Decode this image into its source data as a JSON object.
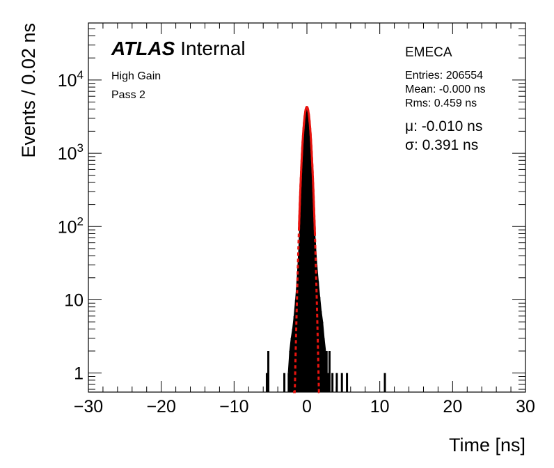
{
  "chart_data": {
    "type": "histogram",
    "title": "",
    "xlabel": "Time [ns]",
    "ylabel": "Events / 0.02 ns",
    "xlim": [
      -30,
      30
    ],
    "ylim": [
      0.55,
      60000
    ],
    "y_scale": "log",
    "x_ticks": [
      "−30",
      "−20",
      "−10",
      "0",
      "10",
      "20",
      "30"
    ],
    "x_tick_values": [
      -30,
      -20,
      -10,
      0,
      10,
      20,
      30
    ],
    "y_ticks": [
      {
        "value": 1,
        "label": "1",
        "sup": ""
      },
      {
        "value": 10,
        "label": "10",
        "sup": ""
      },
      {
        "value": 100,
        "label": "10",
        "sup": "2"
      },
      {
        "value": 1000,
        "label": "10",
        "sup": "3"
      },
      {
        "value": 10000,
        "label": "10",
        "sup": "4"
      }
    ],
    "grid": false,
    "histogram": {
      "name": "",
      "color": "#000000",
      "points": [
        [
          -5.5,
          1
        ],
        [
          -5.3,
          2
        ],
        [
          -3.1,
          1
        ],
        [
          -2.5,
          1
        ],
        [
          -2.3,
          2
        ],
        [
          -2.1,
          3
        ],
        [
          -1.9,
          4
        ],
        [
          -1.7,
          6
        ],
        [
          -1.5,
          10
        ],
        [
          -1.3,
          18
        ],
        [
          -1.1,
          40
        ],
        [
          -0.9,
          110
        ],
        [
          -0.7,
          300
        ],
        [
          -0.5,
          850
        ],
        [
          -0.3,
          2000
        ],
        [
          -0.1,
          3700
        ],
        [
          0.0,
          4300
        ],
        [
          0.1,
          3800
        ],
        [
          0.3,
          2300
        ],
        [
          0.5,
          1050
        ],
        [
          0.7,
          380
        ],
        [
          0.9,
          140
        ],
        [
          1.1,
          60
        ],
        [
          1.3,
          30
        ],
        [
          1.5,
          18
        ],
        [
          1.7,
          11
        ],
        [
          1.9,
          7
        ],
        [
          2.1,
          5
        ],
        [
          2.3,
          3
        ],
        [
          2.5,
          2
        ],
        [
          2.7,
          2
        ],
        [
          2.9,
          1
        ],
        [
          3.1,
          2
        ],
        [
          3.5,
          1
        ],
        [
          4.1,
          1
        ],
        [
          4.8,
          1
        ],
        [
          5.5,
          1
        ],
        [
          10.7,
          1
        ]
      ]
    },
    "fit": {
      "type": "gaussian",
      "color": "#e8140f",
      "amplitude": 4300,
      "mean": -0.01,
      "sigma": 0.391,
      "solid_range": [
        -1.1,
        1.1
      ],
      "dashed_range": [
        -1.9,
        1.9
      ]
    },
    "annotations": {
      "atlas": "ATLAS",
      "atlas_sub": "Internal",
      "line1": "High Gain",
      "line2": "Pass 2",
      "region": "EMECA",
      "entries": "Entries: 206554",
      "mean": "Mean: -0.000 ns",
      "rms": "Rms: 0.459 ns",
      "mu": "μ: -0.010 ns",
      "sigma": "σ: 0.391 ns"
    }
  }
}
